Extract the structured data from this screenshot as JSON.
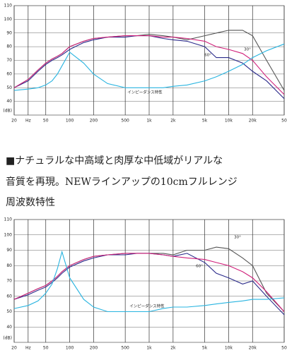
{
  "chart_data": [
    {
      "type": "line",
      "xscale": "log",
      "xlim": [
        20,
        50000
      ],
      "xticks": [
        20,
        {
          "value": 30,
          "label": "Hz"
        },
        50,
        100,
        200,
        500,
        {
          "value": 1000,
          "label": "1k"
        },
        {
          "value": 2000,
          "label": "2k"
        },
        {
          "value": 5000,
          "label": "5k"
        },
        {
          "value": 10000,
          "label": "10k"
        },
        {
          "value": 20000,
          "label": "20k"
        },
        {
          "value": 50000,
          "label": "50"
        }
      ],
      "ylim": [
        30,
        110
      ],
      "yticks": [
        110,
        100,
        90,
        80,
        70,
        60,
        50,
        40
      ],
      "y_label": "(dB)",
      "grid": true,
      "x": [
        20,
        30,
        40,
        50,
        60,
        70,
        80,
        100,
        150,
        200,
        300,
        500,
        700,
        1000,
        1500,
        2000,
        3000,
        5000,
        7000,
        10000,
        15000,
        20000,
        30000,
        50000
      ],
      "series": [
        {
          "color": "#555555",
          "values": [
            50,
            56,
            63,
            68,
            71,
            73,
            75,
            80,
            84,
            86,
            87,
            88,
            88,
            89,
            88,
            87,
            85,
            88,
            90,
            92,
            92,
            88,
            70,
            48
          ]
        },
        {
          "color": "#2a2a8a",
          "values": [
            50,
            55,
            62,
            67,
            70,
            72,
            74,
            78,
            83,
            85,
            87,
            87,
            88,
            88,
            86,
            85,
            84,
            80,
            72,
            72,
            68,
            62,
            55,
            42
          ]
        },
        {
          "color": "#d0207a",
          "values": [
            50,
            56,
            63,
            68,
            71,
            73,
            75,
            80,
            84,
            86,
            87,
            88,
            88,
            88,
            87,
            87,
            86,
            84,
            80,
            78,
            75,
            70,
            58,
            45
          ]
        },
        {
          "color": "#28b4e0",
          "values": [
            48,
            49,
            50,
            52,
            55,
            60,
            66,
            76,
            68,
            60,
            53,
            50,
            50,
            50,
            50,
            51,
            52,
            55,
            58,
            62,
            67,
            72,
            77,
            82
          ]
        }
      ],
      "annotations": [
        "30°",
        "60°",
        "インピーダンス特性"
      ]
    },
    {
      "type": "line",
      "xscale": "log",
      "xlim": [
        20,
        50000
      ],
      "xticks": [
        20,
        {
          "value": 30,
          "label": "Hz"
        },
        50,
        100,
        200,
        500,
        {
          "value": 1000,
          "label": "1k"
        },
        {
          "value": 2000,
          "label": "2k"
        },
        {
          "value": 5000,
          "label": "5k"
        },
        {
          "value": 10000,
          "label": "10k"
        },
        {
          "value": 20000,
          "label": "20k"
        },
        {
          "value": 50000,
          "label": "50"
        }
      ],
      "ylim": [
        30,
        110
      ],
      "yticks": [
        110,
        100,
        90,
        80,
        70,
        60,
        50,
        40
      ],
      "y_label": "(dB)",
      "grid": true,
      "x": [
        20,
        30,
        40,
        50,
        60,
        70,
        80,
        100,
        150,
        200,
        300,
        500,
        700,
        1000,
        1500,
        2000,
        3000,
        5000,
        7000,
        10000,
        15000,
        20000,
        30000,
        50000
      ],
      "series": [
        {
          "color": "#555555",
          "values": [
            58,
            62,
            65,
            67,
            70,
            73,
            76,
            80,
            84,
            86,
            87,
            88,
            88,
            88,
            88,
            87,
            90,
            90,
            92,
            91,
            85,
            80,
            62,
            50
          ]
        },
        {
          "color": "#2a2a8a",
          "values": [
            58,
            61,
            64,
            66,
            69,
            72,
            75,
            79,
            83,
            85,
            87,
            87,
            88,
            88,
            87,
            86,
            88,
            82,
            75,
            72,
            68,
            70,
            60,
            48
          ]
        },
        {
          "color": "#d0207a",
          "values": [
            58,
            62,
            65,
            67,
            70,
            73,
            76,
            80,
            84,
            86,
            87,
            88,
            88,
            88,
            87,
            86,
            85,
            84,
            82,
            80,
            76,
            72,
            63,
            50
          ]
        },
        {
          "color": "#28b4e0",
          "values": [
            52,
            54,
            57,
            62,
            68,
            78,
            89,
            72,
            58,
            53,
            50,
            50,
            50,
            50,
            52,
            53,
            53,
            54,
            55,
            56,
            57,
            58,
            58,
            59
          ]
        }
      ],
      "annotations": [
        "30°",
        "60°",
        "インピーダンス特性"
      ]
    }
  ],
  "text": {
    "paragraph": [
      "■ナチュラルな中高域と肉厚な中低域がリアルな",
      "音質を再現。NEWラインアップの10cmフルレンジ"
    ],
    "heading": "周波数特性"
  }
}
